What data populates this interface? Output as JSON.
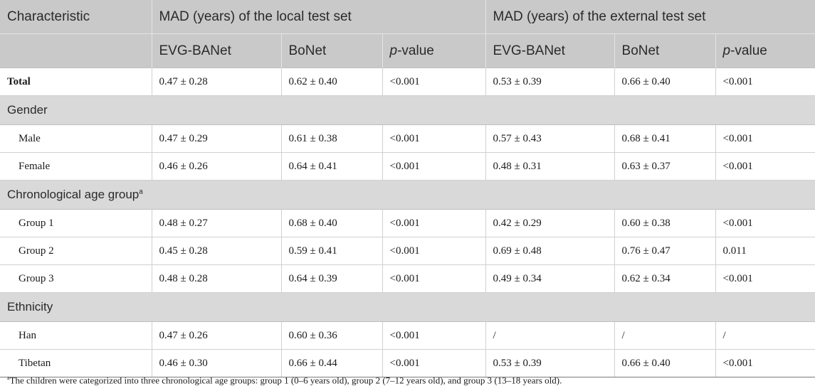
{
  "header": {
    "characteristic": "Characteristic",
    "group_local": "MAD (years) of the local test set",
    "group_external": "MAD (years) of the external test set",
    "sub_model1": "EVG-BANet",
    "sub_model2": "BoNet",
    "sub_p_italic": "p",
    "sub_p_rest": "-value"
  },
  "rows": {
    "total": {
      "label": "Total",
      "c1": "0.47 ± 0.28",
      "c2": "0.62 ± 0.40",
      "c3": "<0.001",
      "c4": "0.53 ± 0.39",
      "c5": "0.66 ± 0.40",
      "c6": "<0.001"
    },
    "gender": {
      "label": "Gender"
    },
    "male": {
      "label": "Male",
      "c1": "0.47 ± 0.29",
      "c2": "0.61 ± 0.38",
      "c3": "<0.001",
      "c4": "0.57 ± 0.43",
      "c5": "0.68 ± 0.41",
      "c6": "<0.001"
    },
    "female": {
      "label": "Female",
      "c1": "0.46 ± 0.26",
      "c2": "0.64 ± 0.41",
      "c3": "<0.001",
      "c4": "0.48 ± 0.31",
      "c5": "0.63 ± 0.37",
      "c6": "<0.001"
    },
    "age": {
      "label": "Chronological age group",
      "sup": "a"
    },
    "g1": {
      "label": "Group 1",
      "c1": "0.48 ± 0.27",
      "c2": "0.68 ± 0.40",
      "c3": "<0.001",
      "c4": "0.42 ± 0.29",
      "c5": "0.60 ± 0.38",
      "c6": "<0.001"
    },
    "g2": {
      "label": "Group 2",
      "c1": "0.45 ± 0.28",
      "c2": "0.59 ± 0.41",
      "c3": "<0.001",
      "c4": "0.69 ± 0.48",
      "c5": "0.76 ± 0.47",
      "c6": "0.011"
    },
    "g3": {
      "label": "Group 3",
      "c1": "0.48 ± 0.28",
      "c2": "0.64 ± 0.39",
      "c3": "<0.001",
      "c4": "0.49 ± 0.34",
      "c5": "0.62 ± 0.34",
      "c6": "<0.001"
    },
    "ethnicity": {
      "label": "Ethnicity"
    },
    "han": {
      "label": "Han",
      "c1": "0.47 ± 0.26",
      "c2": "0.60 ± 0.36",
      "c3": "<0.001",
      "c4": "/",
      "c5": "/",
      "c6": "/"
    },
    "tibetan": {
      "label": "Tibetan",
      "c1": "0.46 ± 0.30",
      "c2": "0.66 ± 0.44",
      "c3": "<0.001",
      "c4": "0.53 ± 0.39",
      "c5": "0.66 ± 0.40",
      "c6": "<0.001"
    }
  },
  "footnote": {
    "sup": "a",
    "text": "The children were categorized into three chronological age groups: group 1 (0–6 years old), group 2 (7–12 years old), and group 3 (13–18 years old)."
  }
}
